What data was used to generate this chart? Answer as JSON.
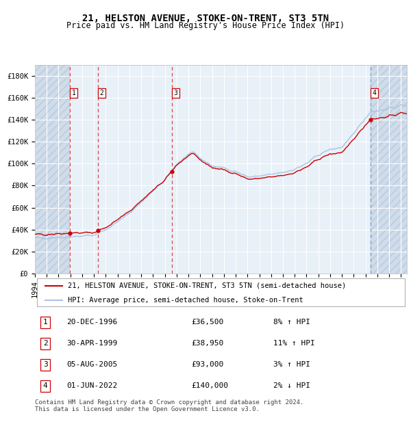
{
  "title": "21, HELSTON AVENUE, STOKE-ON-TRENT, ST3 5TN",
  "subtitle": "Price paid vs. HM Land Registry's House Price Index (HPI)",
  "x_start": 1994.0,
  "x_end": 2025.5,
  "y_min": 0,
  "y_max": 190000,
  "yticks": [
    0,
    20000,
    40000,
    60000,
    80000,
    100000,
    120000,
    140000,
    160000,
    180000
  ],
  "ytick_labels": [
    "£0",
    "£20K",
    "£40K",
    "£60K",
    "£80K",
    "£100K",
    "£120K",
    "£140K",
    "£160K",
    "£180K"
  ],
  "xticks": [
    1994,
    1995,
    1996,
    1997,
    1998,
    1999,
    2000,
    2001,
    2002,
    2003,
    2004,
    2005,
    2006,
    2007,
    2008,
    2009,
    2010,
    2011,
    2012,
    2013,
    2014,
    2015,
    2016,
    2017,
    2018,
    2019,
    2020,
    2021,
    2022,
    2023,
    2024,
    2025
  ],
  "sale_color": "#cc0000",
  "hpi_color": "#aac4e0",
  "bg_plot": "#e8f0f8",
  "bg_hatch": "#d0dcea",
  "grid_color": "#ffffff",
  "vline_sale_color": "#dd4444",
  "vline_last_color": "#8899bb",
  "sale_marker_color": "#cc0000",
  "transactions": [
    {
      "num": 1,
      "date_label": "20-DEC-1996",
      "year": 1996.97,
      "price": 36500,
      "pct": "8%",
      "dir": "↑"
    },
    {
      "num": 2,
      "date_label": "30-APR-1999",
      "year": 1999.33,
      "price": 38950,
      "pct": "11%",
      "dir": "↑"
    },
    {
      "num": 3,
      "date_label": "05-AUG-2005",
      "year": 2005.59,
      "price": 93000,
      "pct": "3%",
      "dir": "↑"
    },
    {
      "num": 4,
      "date_label": "01-JUN-2022",
      "year": 2022.42,
      "price": 140000,
      "pct": "2%",
      "dir": "↓"
    }
  ],
  "legend_sale_label": "21, HELSTON AVENUE, STOKE-ON-TRENT, ST3 5TN (semi-detached house)",
  "legend_hpi_label": "HPI: Average price, semi-detached house, Stoke-on-Trent",
  "footer": "Contains HM Land Registry data © Crown copyright and database right 2024.\nThis data is licensed under the Open Government Licence v3.0.",
  "title_fontsize": 10,
  "subtitle_fontsize": 8.5,
  "axis_fontsize": 7.5,
  "legend_fontsize": 7.5,
  "table_fontsize": 8,
  "footer_fontsize": 6.5
}
